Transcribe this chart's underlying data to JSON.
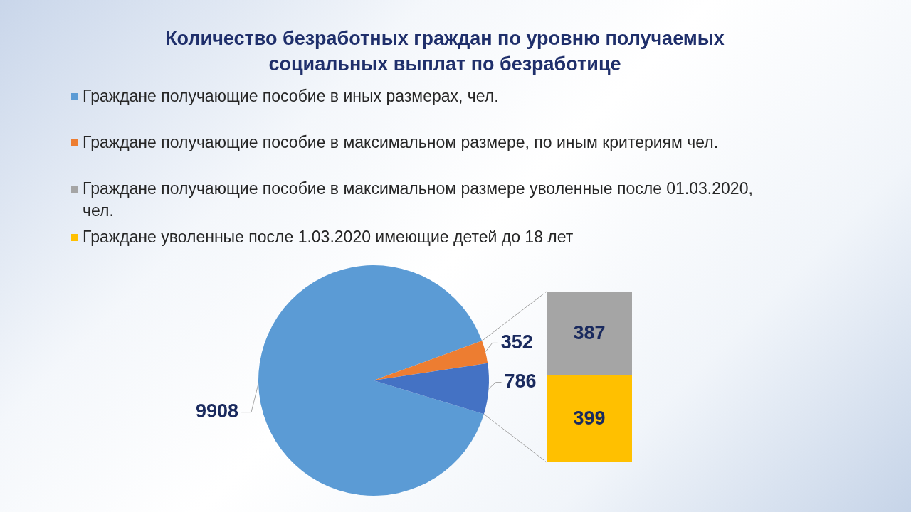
{
  "chart_data": [
    {
      "type": "pie",
      "title": "Количество безработных граждан по уровню получаемых социальных выплат по безработице",
      "categories": [
        "Граждане получающие пособие в иных размерах, чел.",
        "Граждане получающие пособие в максимальном размере, по иным критериям чел.",
        null
      ],
      "values": [
        9908,
        352,
        786
      ],
      "colors": [
        "#5b9bd5",
        "#ed7d31",
        "#4472c4"
      ],
      "data_labels": true,
      "legend": "top"
    },
    {
      "type": "bar",
      "stacked": true,
      "categories": [
        null
      ],
      "series": [
        {
          "name": "Граждане уволенные после 1.03.2020 имеющие детей до 18 лет",
          "color": "#ffc000",
          "values": [
            399
          ]
        },
        {
          "name": "Граждане получающие пособие в максимальном размере уволенные после 01.03.2020, чел.",
          "color": "#a5a5a5",
          "values": [
            387
          ]
        }
      ],
      "data_labels": true,
      "legend": "top"
    }
  ]
}
